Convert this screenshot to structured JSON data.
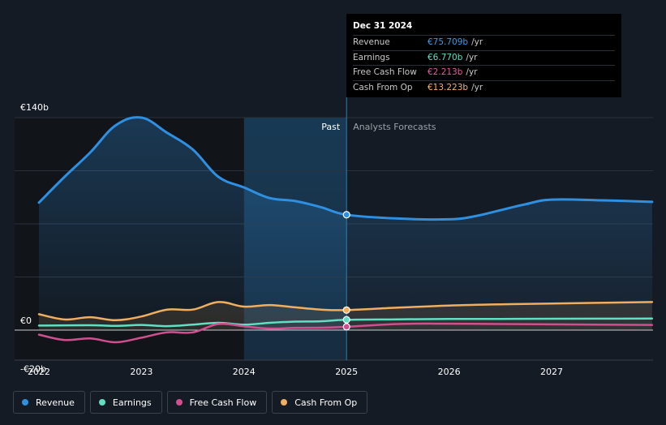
{
  "tooltip": {
    "date": "Dec 31 2024",
    "rows": [
      {
        "label": "Revenue",
        "value": "€75.709b",
        "unit": "/yr",
        "color": "#3a9de8"
      },
      {
        "label": "Earnings",
        "value": "€6.770b",
        "unit": "/yr",
        "color": "#5fe0c3"
      },
      {
        "label": "Free Cash Flow",
        "value": "€2.213b",
        "unit": "/yr",
        "color": "#e55b9c"
      },
      {
        "label": "Cash From Op",
        "value": "€13.223b",
        "unit": "/yr",
        "color": "#f2b266"
      }
    ]
  },
  "legend": [
    {
      "label": "Revenue",
      "color": "#2f8fe0"
    },
    {
      "label": "Earnings",
      "color": "#5fe0c3"
    },
    {
      "label": "Free Cash Flow",
      "color": "#d04f8f"
    },
    {
      "label": "Cash From Op",
      "color": "#f0ae60"
    }
  ],
  "chart_data": {
    "type": "line",
    "y_tick_labels": [
      "€140b",
      "€0",
      "-€20b"
    ],
    "x_tick_labels": [
      "2022",
      "2023",
      "2024",
      "2025",
      "2026",
      "2027"
    ],
    "ylim": [
      -20,
      140
    ],
    "xlim": [
      2021.78,
      2027.98
    ],
    "past_label": "Past",
    "forecast_label": "Analysts Forecasts",
    "divider_x": 2025.0,
    "highlight_start": 2024.0,
    "series": [
      {
        "name": "Revenue",
        "color": "#2f8fe0",
        "fill": true,
        "points": [
          [
            2022.0,
            84
          ],
          [
            2022.25,
            101
          ],
          [
            2022.5,
            117
          ],
          [
            2022.75,
            135
          ],
          [
            2023.0,
            140
          ],
          [
            2023.25,
            130
          ],
          [
            2023.5,
            119
          ],
          [
            2023.75,
            101
          ],
          [
            2024.0,
            94
          ],
          [
            2024.25,
            87
          ],
          [
            2024.5,
            85
          ],
          [
            2024.75,
            81
          ],
          [
            2025.0,
            76
          ],
          [
            2025.5,
            73.5
          ],
          [
            2026.0,
            73
          ],
          [
            2026.25,
            75
          ],
          [
            2026.5,
            79
          ],
          [
            2026.75,
            83
          ],
          [
            2027.0,
            86
          ],
          [
            2027.5,
            85.5
          ],
          [
            2027.98,
            84.5
          ]
        ]
      },
      {
        "name": "Earnings",
        "color": "#5fe0c3",
        "fill": false,
        "points": [
          [
            2022.0,
            3.0
          ],
          [
            2022.5,
            3.2
          ],
          [
            2022.75,
            2.8
          ],
          [
            2023.0,
            3.4
          ],
          [
            2023.25,
            2.6
          ],
          [
            2023.5,
            3.6
          ],
          [
            2023.75,
            4.8
          ],
          [
            2024.0,
            3.6
          ],
          [
            2024.25,
            4.8
          ],
          [
            2024.5,
            5.6
          ],
          [
            2024.75,
            5.8
          ],
          [
            2025.0,
            6.8
          ],
          [
            2025.5,
            7.1
          ],
          [
            2026.0,
            7.3
          ],
          [
            2026.5,
            7.4
          ],
          [
            2027.0,
            7.5
          ],
          [
            2027.98,
            7.6
          ]
        ]
      },
      {
        "name": "Free Cash Flow",
        "color": "#d04f8f",
        "fill": false,
        "points": [
          [
            2022.0,
            -3.0
          ],
          [
            2022.25,
            -6.5
          ],
          [
            2022.5,
            -5.5
          ],
          [
            2022.75,
            -8.0
          ],
          [
            2023.0,
            -5.0
          ],
          [
            2023.25,
            -1.5
          ],
          [
            2023.5,
            -1.5
          ],
          [
            2023.75,
            4.0
          ],
          [
            2024.0,
            2.5
          ],
          [
            2024.25,
            1.0
          ],
          [
            2024.5,
            1.5
          ],
          [
            2024.75,
            1.6
          ],
          [
            2025.0,
            2.2
          ],
          [
            2025.5,
            4.0
          ],
          [
            2026.0,
            4.2
          ],
          [
            2026.5,
            4.0
          ],
          [
            2027.0,
            3.8
          ],
          [
            2027.98,
            3.4
          ]
        ]
      },
      {
        "name": "Cash From Op",
        "color": "#f0ae60",
        "fill": true,
        "points": [
          [
            2022.0,
            10.5
          ],
          [
            2022.25,
            7.0
          ],
          [
            2022.5,
            8.5
          ],
          [
            2022.75,
            6.5
          ],
          [
            2023.0,
            9.0
          ],
          [
            2023.25,
            13.5
          ],
          [
            2023.5,
            13.5
          ],
          [
            2023.75,
            18.5
          ],
          [
            2024.0,
            15.5
          ],
          [
            2024.25,
            16.5
          ],
          [
            2024.5,
            15.0
          ],
          [
            2024.75,
            13.5
          ],
          [
            2025.0,
            13.2
          ],
          [
            2025.5,
            14.8
          ],
          [
            2026.0,
            16.2
          ],
          [
            2026.5,
            17.0
          ],
          [
            2027.0,
            17.5
          ],
          [
            2027.98,
            18.5
          ]
        ]
      }
    ],
    "markers_at_x": 2025.0
  }
}
